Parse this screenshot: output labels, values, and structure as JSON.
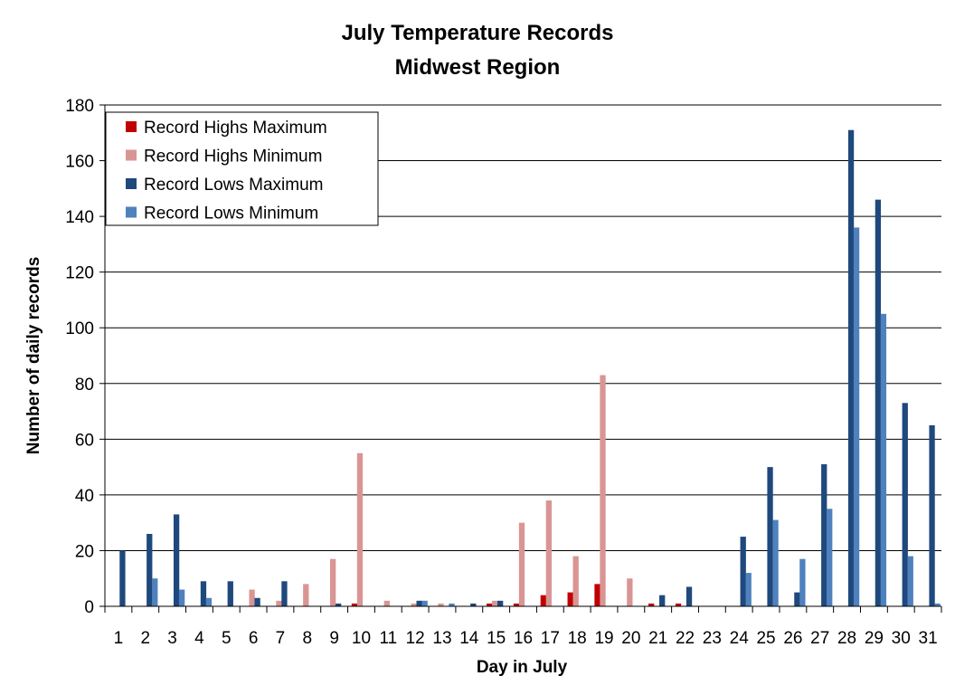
{
  "chart_data": {
    "type": "bar",
    "title": "July Temperature Records",
    "subtitle": "Midwest Region",
    "xlabel": "Day in July",
    "ylabel": "Number of daily records",
    "ylim": [
      0,
      180
    ],
    "yticks": [
      0,
      20,
      40,
      60,
      80,
      100,
      120,
      140,
      160,
      180
    ],
    "grid": "horizontal",
    "legend_position": "top-left",
    "categories": [
      "1",
      "2",
      "3",
      "4",
      "5",
      "6",
      "7",
      "8",
      "9",
      "10",
      "11",
      "12",
      "13",
      "14",
      "15",
      "16",
      "17",
      "18",
      "19",
      "20",
      "21",
      "22",
      "23",
      "24",
      "25",
      "26",
      "27",
      "28",
      "29",
      "30",
      "31"
    ],
    "series": [
      {
        "name": "Record Highs Maximum",
        "color": "#c00000",
        "values": [
          0,
          0,
          0,
          0,
          0,
          0,
          0,
          0,
          0,
          1,
          0,
          0,
          0,
          0,
          1,
          1,
          4,
          5,
          8,
          0,
          1,
          1,
          0,
          0,
          0,
          0,
          0,
          0,
          0,
          0,
          0
        ]
      },
      {
        "name": "Record Highs Minimum",
        "color": "#d99594",
        "values": [
          0,
          0,
          0,
          0,
          0,
          6,
          2,
          8,
          17,
          55,
          2,
          1,
          1,
          0,
          2,
          30,
          38,
          18,
          83,
          10,
          0,
          0,
          0,
          0,
          0,
          0,
          0,
          0,
          0,
          0,
          0
        ]
      },
      {
        "name": "Record Lows Maximum",
        "color": "#1f497d",
        "values": [
          20,
          26,
          33,
          9,
          9,
          3,
          9,
          0,
          1,
          0,
          0,
          2,
          0,
          1,
          2,
          0,
          0,
          0,
          0,
          0,
          4,
          7,
          0,
          25,
          50,
          5,
          51,
          171,
          146,
          73,
          65
        ]
      },
      {
        "name": "Record Lows Minimum",
        "color": "#4f81bd",
        "values": [
          0,
          10,
          6,
          3,
          0,
          0,
          0,
          0,
          0,
          0,
          0,
          2,
          1,
          0,
          0,
          0,
          0,
          0,
          0,
          0,
          0,
          0,
          0,
          12,
          31,
          17,
          35,
          136,
          105,
          18,
          1
        ]
      }
    ]
  }
}
